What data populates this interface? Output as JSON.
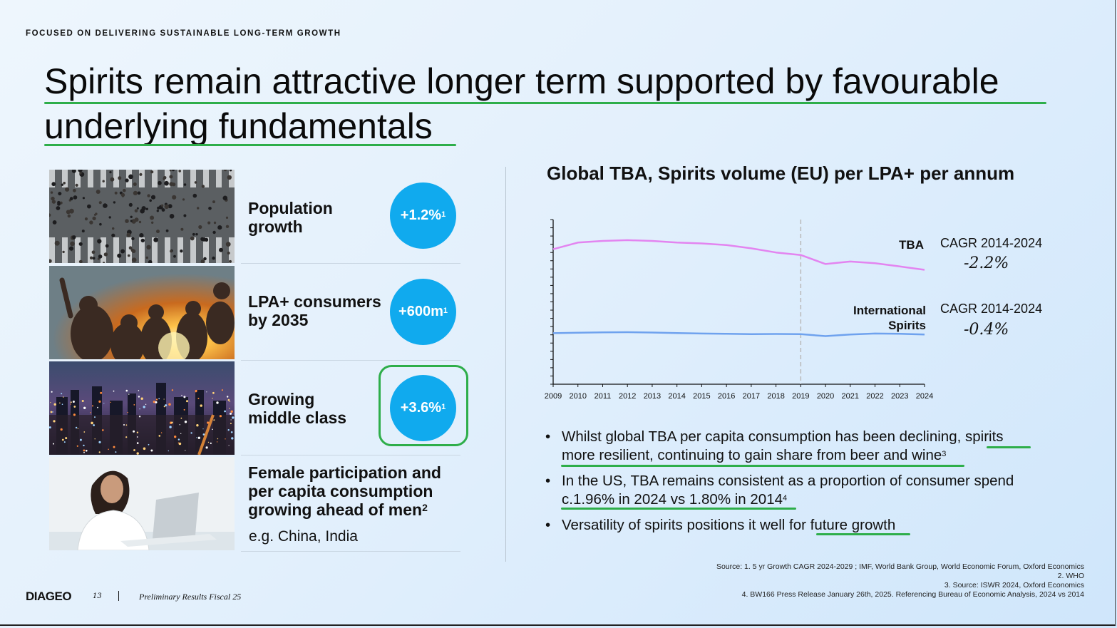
{
  "eyebrow": "FOCUSED ON DELIVERING SUSTAINABLE LONG-TERM GROWTH",
  "title": {
    "line1": "Spirits remain attractive longer term supported by favourable",
    "line2": "underlying fundamentals"
  },
  "highlight_color": "#2eae4a",
  "circle_color": "#10aaee",
  "drivers": [
    {
      "label_line1": "Population",
      "label_line2": "growth",
      "value": "+1.2%",
      "sup": "1"
    },
    {
      "label_line1": "LPA+ consumers",
      "label_line2": "by 2035",
      "value": "+600m",
      "sup": "1"
    },
    {
      "label_line1": "Growing",
      "label_line2": "middle class",
      "value": "+3.6%",
      "sup": "1"
    },
    {
      "label_line1": "Female participation and",
      "label_line2": "per capita consumption",
      "label_line3": "growing ahead of men",
      "sup": "2",
      "sub": "e.g. China, India"
    }
  ],
  "chart": {
    "title": "Global TBA, Spirits volume (EU) per LPA+ per annum",
    "tba_label": "TBA",
    "intl_label_line1": "International",
    "intl_label_line2": "Spirits",
    "tba_cagr_label": "CAGR 2014-2024",
    "tba_cagr_value": "-2.2%",
    "intl_cagr_label": "CAGR 2014-2024",
    "intl_cagr_value": "-0.4%"
  },
  "chart_data": {
    "type": "line",
    "title": "Global TBA, Spirits volume (EU) per LPA+ per annum",
    "x": [
      2009,
      2010,
      2011,
      2012,
      2013,
      2014,
      2015,
      2016,
      2017,
      2018,
      2019,
      2020,
      2021,
      2022,
      2023,
      2024
    ],
    "series": [
      {
        "name": "TBA",
        "color": "#e384f0",
        "values": [
          82,
          86,
          87,
          87.5,
          87,
          86,
          85.5,
          84.5,
          82.5,
          80,
          78.5,
          73,
          74.5,
          73.5,
          71.5,
          69.5
        ]
      },
      {
        "name": "International Spirits",
        "color": "#6fa2ee",
        "values": [
          31,
          31.3,
          31.5,
          31.6,
          31.4,
          31.1,
          30.8,
          30.6,
          30.4,
          30.5,
          30.4,
          29.2,
          30.2,
          30.8,
          30.6,
          30.2
        ]
      }
    ],
    "ylim": [
      0,
      100
    ],
    "xlabel": "",
    "ylabel": "",
    "vertical_marker_year": 2019,
    "grid": false
  },
  "bullets": [
    {
      "pre": "Whilst global TBA per capita consumption has been declining, ",
      "hl1": "spirits",
      "hl2": "more resilient, continuing to gain share from beer and wine",
      "sup": "3"
    },
    {
      "pre": "In the US, TBA remains consistent as a proportion of consumer spend",
      "hl": "c.1.96% in 2024 vs 1.80% in 2014",
      "sup": "4"
    },
    {
      "pre": "Versatility of spirits positions it well for ",
      "hl": "future growth"
    }
  ],
  "sources": [
    "Source: 1. 5 yr Growth CAGR 2024-2029 ; IMF, World Bank Group, World Economic Forum, Oxford Economics",
    "2. WHO",
    "3. Source: ISWR 2024, Oxford Economics",
    "4. BW166 Press Release January 26th, 2025. Referencing Bureau of Economic Analysis, 2024 vs 2014"
  ],
  "footer": {
    "logo": "DIAGEO",
    "page_number": "13",
    "text": "Preliminary Results Fiscal 25"
  }
}
